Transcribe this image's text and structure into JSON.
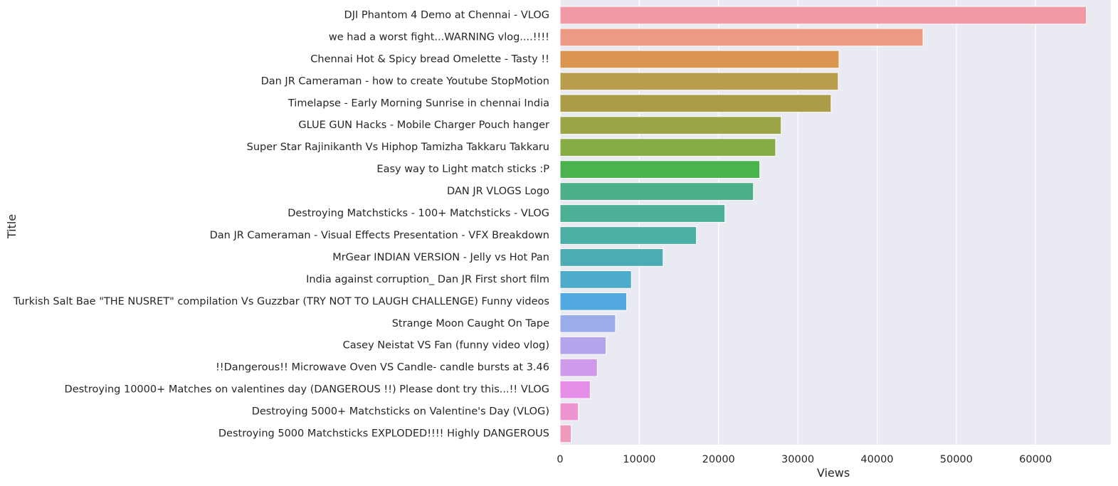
{
  "chart_data": {
    "type": "bar",
    "orientation": "horizontal",
    "xlabel": "Views",
    "ylabel": "Title",
    "xlim": [
      0,
      69500
    ],
    "xticks": [
      0,
      10000,
      20000,
      30000,
      40000,
      50000,
      60000
    ],
    "grid": true,
    "categories": [
      "DJI Phantom 4 Demo at Chennai - VLOG",
      "we had a worst fight...WARNING vlog....!!!!",
      "Chennai Hot & Spicy bread Omelette - Tasty !!",
      "Dan JR Cameraman - how to create Youtube StopMotion",
      "Timelapse - Early Morning Sunrise in chennai India",
      "GLUE GUN Hacks - Mobile Charger Pouch hanger",
      "Super Star Rajinikanth Vs Hiphop Tamizha Takkaru Takkaru",
      "Easy way to Light match sticks :P",
      "DAN JR VLOGS Logo",
      "Destroying Matchsticks - 100+ Matchsticks - VLOG",
      "Dan JR Cameraman - Visual Effects Presentation - VFX Breakdown",
      "MrGear INDIAN VERSION - Jelly vs Hot Pan",
      "India against corruption_ Dan JR First short film",
      "Turkish Salt Bae \"THE NUSRET\" compilation Vs Guzzbar (TRY NOT TO LAUGH CHALLENGE) Funny videos",
      "Strange Moon Caught On Tape",
      "Casey Neistat VS Fan (funny video vlog)",
      "!!Dangerous!! Microwave Oven VS Candle- candle bursts at 3.46",
      "Destroying 10000+ Matches on valentines day (DANGEROUS !!) Please dont try this...!! VLOG",
      "Destroying 5000+ Matchsticks on Valentine's Day (VLOG)",
      "Destroying 5000 Matchsticks EXPLODED!!!! Highly DANGEROUS"
    ],
    "values": [
      66400,
      45800,
      35200,
      35100,
      34200,
      27900,
      27200,
      25200,
      24400,
      20800,
      17200,
      13000,
      9000,
      8400,
      7000,
      5800,
      4700,
      3800,
      2300,
      1400
    ],
    "colors": [
      "#ef9aa5",
      "#ec9a85",
      "#d99550",
      "#ba9c4d",
      "#ab9d48",
      "#9ba546",
      "#86ac46",
      "#4bb34e",
      "#4bb089",
      "#4bb095",
      "#4aafa5",
      "#4bacb3",
      "#4cacc9",
      "#52a9e0",
      "#9aace9",
      "#b5a3ec",
      "#d09aec",
      "#e58de7",
      "#ec95d1",
      "#ef9bbd"
    ]
  }
}
